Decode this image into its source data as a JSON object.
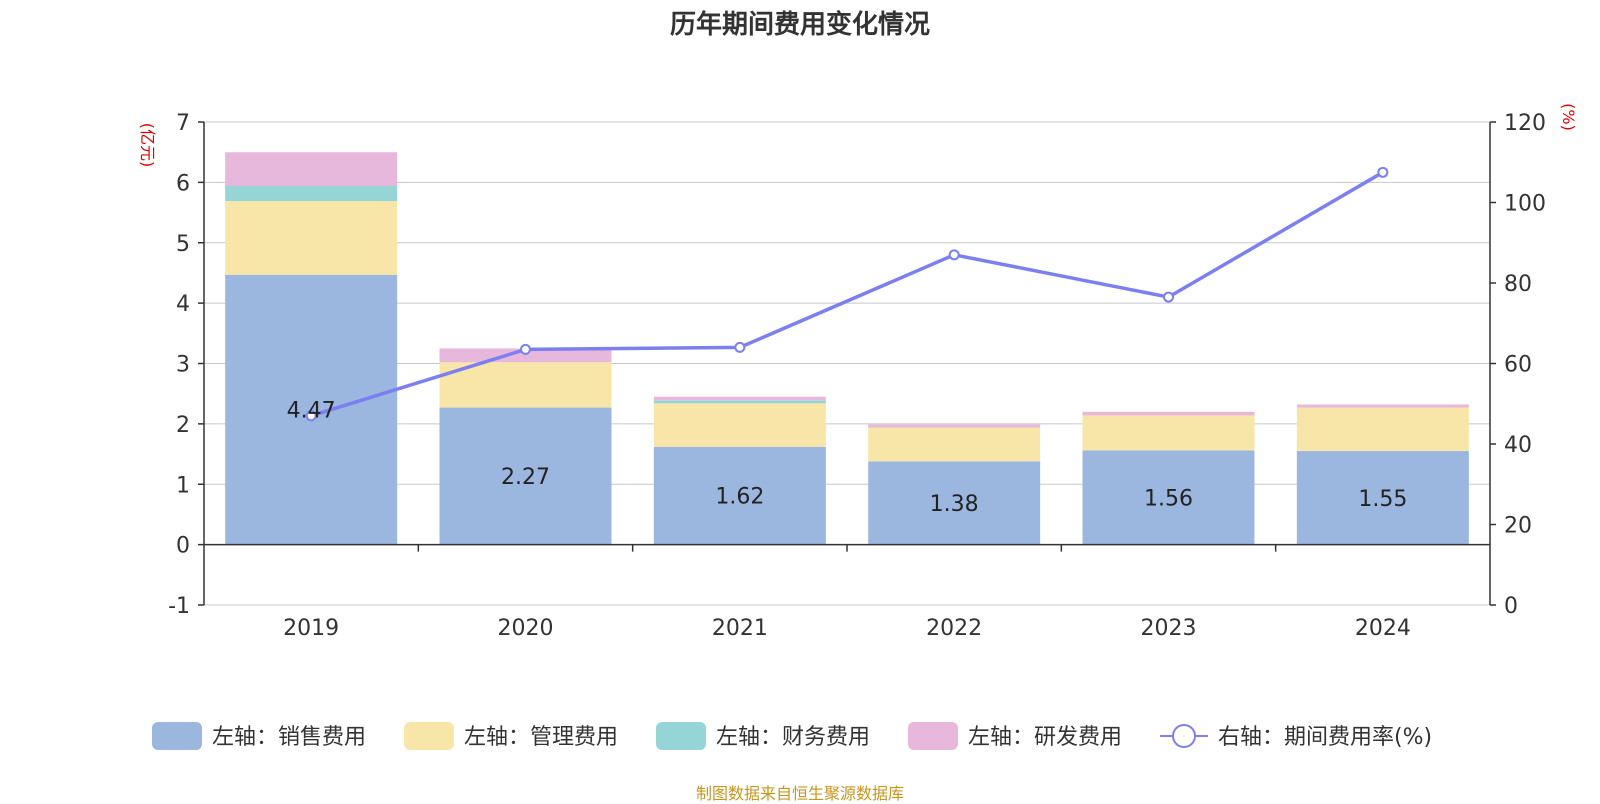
{
  "title": "历年期间费用变化情况",
  "source": "制图数据来自恒生聚源数据库",
  "chart_data": {
    "type": "bar",
    "stacked": true,
    "categories": [
      "2019",
      "2020",
      "2021",
      "2022",
      "2023",
      "2024"
    ],
    "left_axis": {
      "unit": "(亿元)",
      "ylim": [
        -1,
        7
      ],
      "ticks": [
        "-1",
        "0",
        "1",
        "2",
        "3",
        "4",
        "5",
        "6",
        "7"
      ]
    },
    "right_axis": {
      "unit": "(%)",
      "ylim": [
        0,
        120
      ],
      "ticks": [
        "0",
        "20",
        "40",
        "60",
        "80",
        "100",
        "120"
      ]
    },
    "series": [
      {
        "name": "左轴：销售费用",
        "axis": "left",
        "kind": "bar",
        "color": "#9bb7e0",
        "values": [
          4.47,
          2.27,
          1.62,
          1.38,
          1.56,
          1.55
        ],
        "labels": [
          "4.47",
          "2.27",
          "1.62",
          "1.38",
          "1.56",
          "1.55"
        ]
      },
      {
        "name": "左轴：管理费用",
        "axis": "left",
        "kind": "bar",
        "color": "#f8e6a8",
        "values": [
          1.22,
          0.75,
          0.72,
          0.56,
          0.58,
          0.72
        ]
      },
      {
        "name": "左轴：财务费用",
        "axis": "left",
        "kind": "bar",
        "color": "#96d5d5",
        "values": [
          0.25,
          0.0,
          0.05,
          0.0,
          0.0,
          0.0
        ]
      },
      {
        "name": "左轴：研发费用",
        "axis": "left",
        "kind": "bar",
        "color": "#e8b8dc",
        "values": [
          0.56,
          0.23,
          0.06,
          0.05,
          0.06,
          0.05
        ]
      },
      {
        "name": "右轴：期间费用率(%)",
        "axis": "right",
        "kind": "line",
        "color": "#7b7ff0",
        "values": [
          47,
          63.5,
          64,
          87,
          76.5,
          107.5
        ]
      }
    ],
    "grid": true,
    "legend_position": "bottom"
  }
}
